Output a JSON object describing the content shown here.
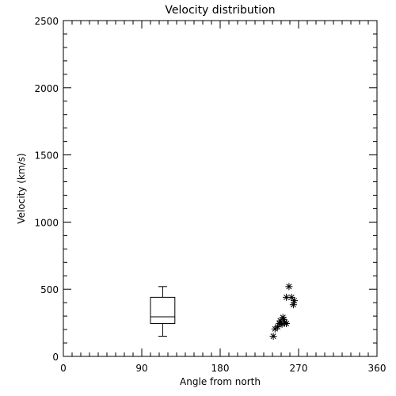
{
  "chart_data": {
    "type": "scatter",
    "title": "Velocity distribution",
    "xlabel": "Angle from north",
    "ylabel": "Velocity (km/s)",
    "xlim": [
      0,
      360
    ],
    "ylim": [
      0,
      2500
    ],
    "x_ticks": [
      0,
      90,
      180,
      270,
      360
    ],
    "x_tick_labels": [
      "0",
      "90",
      "180",
      "270",
      "360"
    ],
    "y_ticks": [
      0,
      500,
      1000,
      1500,
      2000,
      2500
    ],
    "y_tick_labels": [
      "0",
      "500",
      "1000",
      "1500",
      "2000",
      "2500"
    ],
    "grid": false,
    "boxplot": {
      "x_left": 100,
      "x_right": 128,
      "whisker_low": 150,
      "q1": 245,
      "median": 295,
      "q3": 440,
      "whisker_high": 520
    },
    "points": [
      {
        "x": 241,
        "y": 150
      },
      {
        "x": 243,
        "y": 205
      },
      {
        "x": 246,
        "y": 220
      },
      {
        "x": 248,
        "y": 245
      },
      {
        "x": 249,
        "y": 265
      },
      {
        "x": 251,
        "y": 240
      },
      {
        "x": 252,
        "y": 290
      },
      {
        "x": 253,
        "y": 275
      },
      {
        "x": 254,
        "y": 250
      },
      {
        "x": 256,
        "y": 245
      },
      {
        "x": 256,
        "y": 440
      },
      {
        "x": 259,
        "y": 520
      },
      {
        "x": 262,
        "y": 440
      },
      {
        "x": 264,
        "y": 385
      },
      {
        "x": 265,
        "y": 415
      }
    ]
  }
}
